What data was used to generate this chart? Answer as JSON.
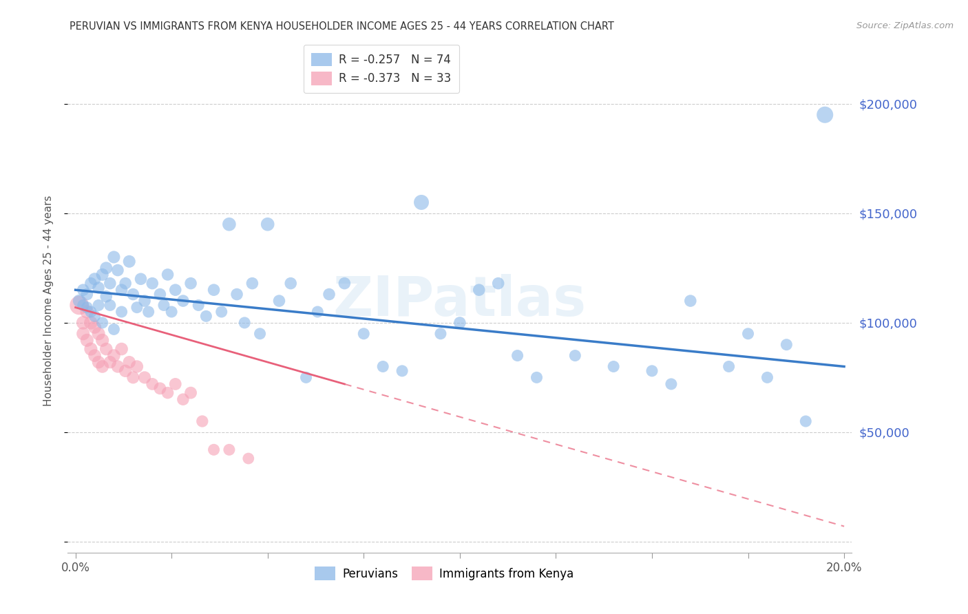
{
  "title": "PERUVIAN VS IMMIGRANTS FROM KENYA HOUSEHOLDER INCOME AGES 25 - 44 YEARS CORRELATION CHART",
  "source": "Source: ZipAtlas.com",
  "ylabel": "Householder Income Ages 25 - 44 years",
  "r_peruvian": -0.257,
  "n_peruvian": 74,
  "r_kenya": -0.373,
  "n_kenya": 33,
  "xlim": [
    -0.002,
    0.202
  ],
  "ylim": [
    -5000,
    225000
  ],
  "yticks": [
    0,
    50000,
    100000,
    150000,
    200000
  ],
  "ytick_labels": [
    "",
    "$50,000",
    "$100,000",
    "$150,000",
    "$200,000"
  ],
  "xticks": [
    0.0,
    0.025,
    0.05,
    0.075,
    0.1,
    0.125,
    0.15,
    0.175,
    0.2
  ],
  "xtick_labels": [
    "0.0%",
    "",
    "",
    "",
    "",
    "",
    "",
    "",
    "20.0%"
  ],
  "color_peruvian": "#8BB8E8",
  "color_kenya": "#F5A0B5",
  "trend_color_peruvian": "#3A7CC8",
  "trend_color_kenya": "#E8607A",
  "watermark_color": "#D8E8F5",
  "background_color": "#FFFFFF",
  "peruvian_x": [
    0.001,
    0.002,
    0.002,
    0.003,
    0.003,
    0.004,
    0.004,
    0.005,
    0.005,
    0.006,
    0.006,
    0.007,
    0.007,
    0.008,
    0.008,
    0.009,
    0.009,
    0.01,
    0.01,
    0.011,
    0.012,
    0.012,
    0.013,
    0.014,
    0.015,
    0.016,
    0.017,
    0.018,
    0.019,
    0.02,
    0.022,
    0.023,
    0.024,
    0.025,
    0.026,
    0.028,
    0.03,
    0.032,
    0.034,
    0.036,
    0.038,
    0.04,
    0.042,
    0.044,
    0.046,
    0.048,
    0.05,
    0.053,
    0.056,
    0.06,
    0.063,
    0.066,
    0.07,
    0.075,
    0.08,
    0.085,
    0.09,
    0.095,
    0.1,
    0.105,
    0.11,
    0.115,
    0.12,
    0.13,
    0.14,
    0.15,
    0.155,
    0.16,
    0.17,
    0.175,
    0.18,
    0.185,
    0.19,
    0.195
  ],
  "peruvian_y": [
    110000,
    108000,
    115000,
    113000,
    107000,
    118000,
    105000,
    120000,
    103000,
    116000,
    108000,
    122000,
    100000,
    112000,
    125000,
    108000,
    118000,
    130000,
    97000,
    124000,
    115000,
    105000,
    118000,
    128000,
    113000,
    107000,
    120000,
    110000,
    105000,
    118000,
    113000,
    108000,
    122000,
    105000,
    115000,
    110000,
    118000,
    108000,
    103000,
    115000,
    105000,
    145000,
    113000,
    100000,
    118000,
    95000,
    145000,
    110000,
    118000,
    75000,
    105000,
    113000,
    118000,
    95000,
    80000,
    78000,
    155000,
    95000,
    100000,
    115000,
    118000,
    85000,
    75000,
    85000,
    80000,
    78000,
    72000,
    110000,
    80000,
    95000,
    75000,
    90000,
    55000,
    195000
  ],
  "peruvian_sizes": [
    180,
    150,
    160,
    160,
    150,
    160,
    150,
    170,
    150,
    160,
    150,
    170,
    150,
    160,
    170,
    150,
    160,
    170,
    150,
    160,
    160,
    150,
    160,
    170,
    160,
    150,
    160,
    160,
    150,
    160,
    160,
    150,
    160,
    150,
    160,
    160,
    160,
    150,
    150,
    160,
    150,
    200,
    160,
    150,
    160,
    150,
    200,
    160,
    160,
    150,
    150,
    160,
    160,
    150,
    150,
    150,
    250,
    150,
    160,
    160,
    160,
    150,
    150,
    150,
    150,
    150,
    150,
    160,
    150,
    150,
    150,
    150,
    150,
    300
  ],
  "kenya_x": [
    0.001,
    0.002,
    0.002,
    0.003,
    0.003,
    0.004,
    0.004,
    0.005,
    0.005,
    0.006,
    0.006,
    0.007,
    0.007,
    0.008,
    0.009,
    0.01,
    0.011,
    0.012,
    0.013,
    0.014,
    0.015,
    0.016,
    0.018,
    0.02,
    0.022,
    0.024,
    0.026,
    0.028,
    0.03,
    0.033,
    0.036,
    0.04,
    0.045
  ],
  "kenya_y": [
    108000,
    100000,
    95000,
    105000,
    92000,
    100000,
    88000,
    98000,
    85000,
    95000,
    82000,
    92000,
    80000,
    88000,
    82000,
    85000,
    80000,
    88000,
    78000,
    82000,
    75000,
    80000,
    75000,
    72000,
    70000,
    68000,
    72000,
    65000,
    68000,
    55000,
    42000,
    42000,
    38000
  ],
  "kenya_sizes": [
    400,
    200,
    190,
    200,
    190,
    200,
    190,
    190,
    180,
    190,
    180,
    190,
    180,
    180,
    175,
    180,
    175,
    180,
    175,
    175,
    170,
    175,
    170,
    165,
    165,
    160,
    165,
    160,
    165,
    155,
    150,
    150,
    145
  ],
  "trend_peruvian_x0": 0.0,
  "trend_peruvian_y0": 115000,
  "trend_peruvian_x1": 0.2,
  "trend_peruvian_y1": 80000,
  "trend_kenya_solid_x0": 0.0,
  "trend_kenya_solid_y0": 107000,
  "trend_kenya_solid_x1": 0.07,
  "trend_kenya_solid_y1": 72000,
  "trend_kenya_dash_x0": 0.07,
  "trend_kenya_dash_y0": 72000,
  "trend_kenya_dash_x1": 0.2,
  "trend_kenya_dash_y1": 7000
}
